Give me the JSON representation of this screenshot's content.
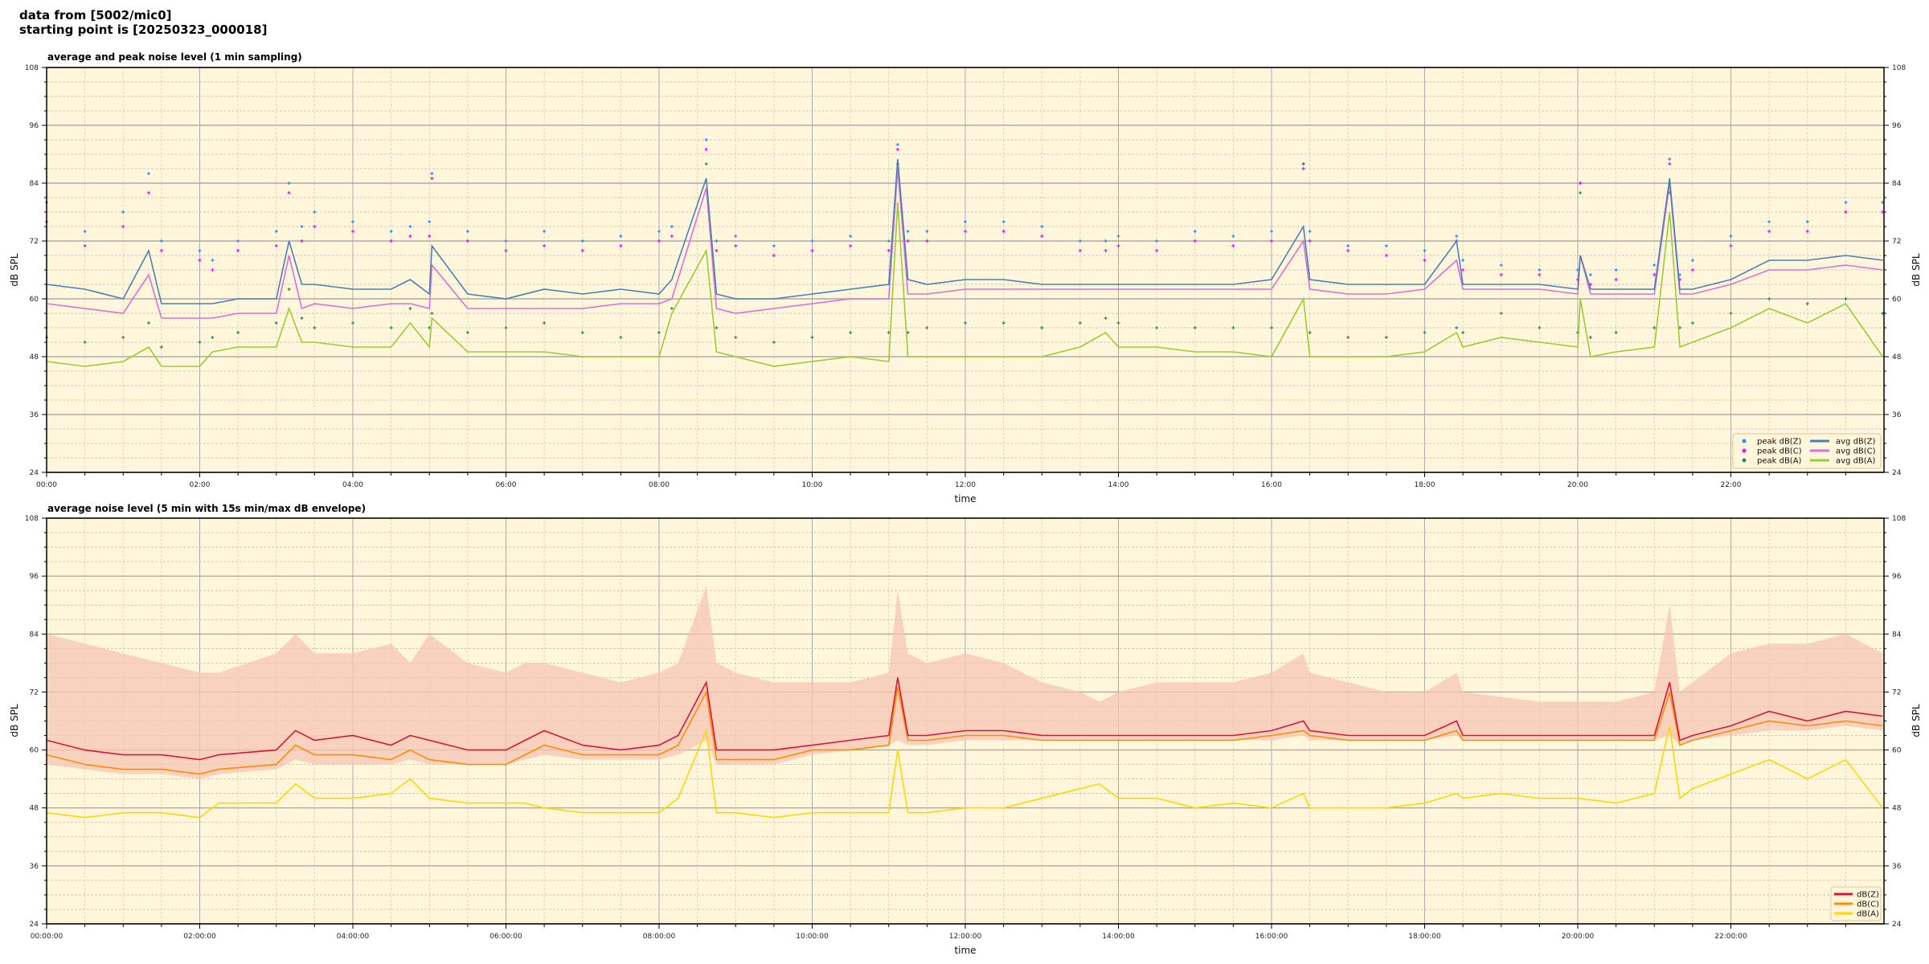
{
  "header": {
    "line1": "data from [5002/mic0]",
    "line2": "starting point is [20250323_000018]"
  },
  "chart_data": [
    {
      "type": "line",
      "title": "average and peak noise level (1 min sampling)",
      "xlabel": "time",
      "ylabel": "dB SPL",
      "ylim": [
        24,
        108
      ],
      "xlim": [
        "00:00",
        "24:00"
      ],
      "yticks": [
        24,
        36,
        48,
        60,
        72,
        84,
        96,
        108
      ],
      "xtick_labels": [
        "00:00",
        "02:00",
        "04:00",
        "06:00",
        "08:00",
        "10:00",
        "12:00",
        "14:00",
        "16:00",
        "18:00",
        "20:00",
        "22:00"
      ],
      "grid": true,
      "legend_position": "bottom-right",
      "columns": [
        "time",
        "avg dB(Z)",
        "avg dB(C)",
        "avg dB(A)",
        "peak dB(Z)",
        "peak dB(C)",
        "peak dB(A)"
      ],
      "series": [
        {
          "name": "peak dB(Z)",
          "kind": "scatter",
          "color": "#1e90ff",
          "column": 4
        },
        {
          "name": "peak dB(C)",
          "kind": "scatter",
          "color": "#ff00ff",
          "column": 5
        },
        {
          "name": "peak dB(A)",
          "kind": "scatter",
          "color": "#2e8b57",
          "column": 6
        },
        {
          "name": "avg dB(Z)",
          "kind": "line",
          "color": "#4682b4",
          "column": 1
        },
        {
          "name": "avg dB(C)",
          "kind": "line",
          "color": "#da70d6",
          "column": 2
        },
        {
          "name": "avg dB(A)",
          "kind": "line",
          "color": "#9acd32",
          "column": 3
        }
      ],
      "rows": [
        [
          "00:00",
          63,
          59,
          47,
          80,
          76,
          52
        ],
        [
          "00:30",
          62,
          58,
          46,
          74,
          71,
          51
        ],
        [
          "01:00",
          60,
          57,
          47,
          78,
          75,
          52
        ],
        [
          "01:20",
          70,
          65,
          50,
          86,
          82,
          55
        ],
        [
          "01:30",
          59,
          56,
          46,
          72,
          70,
          50
        ],
        [
          "02:00",
          59,
          56,
          46,
          70,
          68,
          51
        ],
        [
          "02:10",
          59,
          56,
          49,
          68,
          66,
          52
        ],
        [
          "02:30",
          60,
          57,
          50,
          72,
          70,
          53
        ],
        [
          "03:00",
          60,
          57,
          50,
          74,
          71,
          55
        ],
        [
          "03:10",
          72,
          69,
          58,
          84,
          82,
          62
        ],
        [
          "03:20",
          63,
          58,
          51,
          75,
          72,
          56
        ],
        [
          "03:30",
          63,
          59,
          51,
          78,
          75,
          54
        ],
        [
          "04:00",
          62,
          58,
          50,
          76,
          74,
          55
        ],
        [
          "04:30",
          62,
          59,
          50,
          74,
          72,
          54
        ],
        [
          "04:45",
          64,
          59,
          55,
          75,
          73,
          58
        ],
        [
          "05:00",
          61,
          58,
          50,
          76,
          73,
          54
        ],
        [
          "05:02",
          71,
          67,
          56,
          86,
          85,
          57
        ],
        [
          "05:30",
          61,
          58,
          49,
          74,
          72,
          53
        ],
        [
          "06:00",
          60,
          58,
          49,
          72,
          70,
          54
        ],
        [
          "06:30",
          62,
          58,
          49,
          74,
          71,
          55
        ],
        [
          "07:00",
          61,
          58,
          48,
          72,
          70,
          53
        ],
        [
          "07:30",
          62,
          59,
          48,
          73,
          71,
          52
        ],
        [
          "08:00",
          61,
          59,
          48,
          74,
          72,
          53
        ],
        [
          "08:10",
          64,
          60,
          57,
          75,
          73,
          58
        ],
        [
          "08:37",
          85,
          83,
          70,
          93,
          91,
          88
        ],
        [
          "08:45",
          61,
          58,
          49,
          72,
          70,
          54
        ],
        [
          "09:00",
          60,
          57,
          48,
          73,
          71,
          52
        ],
        [
          "09:30",
          60,
          58,
          46,
          71,
          69,
          51
        ],
        [
          "10:00",
          61,
          59,
          47,
          72,
          70,
          52
        ],
        [
          "10:30",
          62,
          60,
          48,
          73,
          71,
          53
        ],
        [
          "11:00",
          63,
          60,
          47,
          72,
          70,
          53
        ],
        [
          "11:07",
          89,
          87,
          80,
          92,
          91,
          88
        ],
        [
          "11:15",
          64,
          61,
          48,
          74,
          72,
          53
        ],
        [
          "11:30",
          63,
          61,
          48,
          74,
          72,
          54
        ],
        [
          "12:00",
          64,
          62,
          48,
          76,
          74,
          55
        ],
        [
          "12:30",
          64,
          62,
          48,
          76,
          74,
          55
        ],
        [
          "13:00",
          63,
          62,
          48,
          75,
          73,
          54
        ],
        [
          "13:30",
          63,
          62,
          50,
          72,
          70,
          55
        ],
        [
          "13:50",
          63,
          62,
          53,
          72,
          70,
          56
        ],
        [
          "14:00",
          63,
          62,
          50,
          73,
          71,
          55
        ],
        [
          "14:30",
          63,
          62,
          50,
          72,
          70,
          54
        ],
        [
          "15:00",
          63,
          62,
          49,
          74,
          72,
          54
        ],
        [
          "15:30",
          63,
          62,
          49,
          73,
          71,
          54
        ],
        [
          "16:00",
          64,
          62,
          48,
          74,
          72,
          54
        ],
        [
          "16:25",
          75,
          72,
          60,
          88,
          87,
          88
        ],
        [
          "16:30",
          64,
          62,
          48,
          74,
          72,
          53
        ],
        [
          "17:00",
          63,
          61,
          48,
          71,
          70,
          52
        ],
        [
          "17:30",
          63,
          61,
          48,
          71,
          69,
          52
        ],
        [
          "18:00",
          63,
          62,
          49,
          70,
          68,
          53
        ],
        [
          "18:25",
          72,
          68,
          53,
          73,
          72,
          54
        ],
        [
          "18:30",
          63,
          62,
          50,
          68,
          66,
          53
        ],
        [
          "19:00",
          63,
          62,
          52,
          67,
          65,
          57
        ],
        [
          "19:30",
          63,
          62,
          51,
          66,
          65,
          54
        ],
        [
          "20:00",
          62,
          61,
          50,
          66,
          64,
          53
        ],
        [
          "20:02",
          69,
          69,
          60,
          84,
          84,
          82
        ],
        [
          "20:10",
          62,
          61,
          48,
          65,
          63,
          52
        ],
        [
          "20:30",
          62,
          61,
          49,
          66,
          64,
          53
        ],
        [
          "21:00",
          62,
          61,
          50,
          67,
          65,
          54
        ],
        [
          "21:12",
          85,
          84,
          78,
          89,
          88,
          82
        ],
        [
          "21:20",
          62,
          61,
          50,
          65,
          64,
          54
        ],
        [
          "21:30",
          62,
          61,
          51,
          68,
          66,
          55
        ],
        [
          "22:00",
          64,
          63,
          54,
          73,
          71,
          57
        ],
        [
          "22:30",
          68,
          66,
          58,
          76,
          74,
          60
        ],
        [
          "23:00",
          68,
          66,
          55,
          76,
          74,
          59
        ],
        [
          "23:30",
          69,
          67,
          59,
          80,
          78,
          60
        ],
        [
          "23:59",
          68,
          66,
          48,
          80,
          78,
          57
        ]
      ]
    },
    {
      "type": "line",
      "title": "average noise level (5 min with 15s min/max dB envelope)",
      "xlabel": "time",
      "ylabel": "dB SPL",
      "ylim": [
        24,
        108
      ],
      "xlim": [
        "00:00:00",
        "24:00:00"
      ],
      "yticks": [
        24,
        36,
        48,
        60,
        72,
        84,
        96,
        108
      ],
      "xtick_labels": [
        "00:00:00",
        "02:00:00",
        "04:00:00",
        "06:00:00",
        "08:00:00",
        "10:00:00",
        "12:00:00",
        "14:00:00",
        "16:00:00",
        "18:00:00",
        "20:00:00",
        "22:00:00"
      ],
      "grid": true,
      "legend_position": "bottom-right",
      "envelope_color": "#f5c6b4",
      "columns": [
        "time",
        "dB(Z)",
        "dB(C)",
        "dB(A)",
        "envelope min",
        "envelope max"
      ],
      "series": [
        {
          "name": "dB(Z)",
          "kind": "line",
          "color": "#dc143c",
          "column": 1
        },
        {
          "name": "dB(C)",
          "kind": "line",
          "color": "#ff8c00",
          "column": 2
        },
        {
          "name": "dB(A)",
          "kind": "line",
          "color": "#ffd700",
          "column": 3
        }
      ],
      "rows": [
        [
          "00:00",
          62,
          59,
          47,
          57,
          84
        ],
        [
          "00:30",
          60,
          57,
          46,
          56,
          82
        ],
        [
          "01:00",
          59,
          56,
          47,
          55,
          80
        ],
        [
          "01:30",
          59,
          56,
          47,
          55,
          78
        ],
        [
          "02:00",
          58,
          55,
          46,
          54,
          76
        ],
        [
          "02:15",
          59,
          56,
          49,
          55,
          76
        ],
        [
          "03:00",
          60,
          57,
          49,
          56,
          80
        ],
        [
          "03:15",
          64,
          61,
          53,
          58,
          84
        ],
        [
          "03:30",
          62,
          59,
          50,
          57,
          80
        ],
        [
          "04:00",
          63,
          59,
          50,
          57,
          80
        ],
        [
          "04:30",
          61,
          58,
          51,
          57,
          82
        ],
        [
          "04:45",
          63,
          60,
          54,
          58,
          78
        ],
        [
          "05:00",
          62,
          58,
          50,
          57,
          84
        ],
        [
          "05:30",
          60,
          57,
          49,
          57,
          78
        ],
        [
          "06:00",
          60,
          57,
          49,
          57,
          76
        ],
        [
          "06:15",
          62,
          59,
          49,
          58,
          78
        ],
        [
          "06:30",
          64,
          61,
          48,
          59,
          78
        ],
        [
          "07:00",
          61,
          59,
          47,
          58,
          76
        ],
        [
          "07:30",
          60,
          59,
          47,
          58,
          74
        ],
        [
          "08:00",
          61,
          59,
          47,
          58,
          76
        ],
        [
          "08:15",
          63,
          61,
          50,
          59,
          78
        ],
        [
          "08:37",
          74,
          72,
          64,
          62,
          94
        ],
        [
          "08:45",
          60,
          58,
          47,
          57,
          78
        ],
        [
          "09:00",
          60,
          58,
          47,
          57,
          76
        ],
        [
          "09:30",
          60,
          58,
          46,
          57,
          74
        ],
        [
          "10:00",
          61,
          60,
          47,
          59,
          74
        ],
        [
          "10:30",
          62,
          60,
          47,
          60,
          74
        ],
        [
          "11:00",
          63,
          61,
          47,
          61,
          76
        ],
        [
          "11:07",
          75,
          73,
          60,
          62,
          93
        ],
        [
          "11:15",
          63,
          62,
          47,
          61,
          80
        ],
        [
          "11:30",
          63,
          62,
          47,
          61,
          78
        ],
        [
          "12:00",
          64,
          63,
          48,
          62,
          80
        ],
        [
          "12:30",
          64,
          63,
          48,
          62,
          78
        ],
        [
          "13:00",
          63,
          62,
          50,
          62,
          74
        ],
        [
          "13:30",
          63,
          62,
          52,
          62,
          72
        ],
        [
          "13:45",
          63,
          62,
          53,
          62,
          70
        ],
        [
          "14:00",
          63,
          62,
          50,
          62,
          72
        ],
        [
          "14:30",
          63,
          62,
          50,
          62,
          74
        ],
        [
          "15:00",
          63,
          62,
          48,
          62,
          74
        ],
        [
          "15:30",
          63,
          62,
          49,
          62,
          74
        ],
        [
          "16:00",
          64,
          63,
          48,
          62,
          76
        ],
        [
          "16:25",
          66,
          64,
          51,
          63,
          80
        ],
        [
          "16:30",
          64,
          63,
          48,
          62,
          76
        ],
        [
          "17:00",
          63,
          62,
          48,
          62,
          74
        ],
        [
          "17:30",
          63,
          62,
          48,
          62,
          72
        ],
        [
          "18:00",
          63,
          62,
          49,
          62,
          72
        ],
        [
          "18:25",
          66,
          64,
          51,
          63,
          76
        ],
        [
          "18:30",
          63,
          62,
          50,
          62,
          72
        ],
        [
          "19:00",
          63,
          62,
          51,
          62,
          71
        ],
        [
          "19:30",
          63,
          62,
          50,
          62,
          70
        ],
        [
          "20:00",
          63,
          62,
          50,
          62,
          70
        ],
        [
          "20:30",
          63,
          62,
          49,
          62,
          70
        ],
        [
          "21:00",
          63,
          62,
          51,
          62,
          72
        ],
        [
          "21:12",
          74,
          72,
          65,
          63,
          90
        ],
        [
          "21:20",
          62,
          61,
          50,
          61,
          72
        ],
        [
          "21:30",
          63,
          62,
          52,
          62,
          74
        ],
        [
          "22:00",
          65,
          64,
          55,
          63,
          80
        ],
        [
          "22:30",
          68,
          66,
          58,
          64,
          82
        ],
        [
          "23:00",
          66,
          65,
          54,
          64,
          82
        ],
        [
          "23:30",
          68,
          66,
          58,
          65,
          84
        ],
        [
          "23:59",
          67,
          65,
          48,
          64,
          80
        ]
      ]
    }
  ]
}
